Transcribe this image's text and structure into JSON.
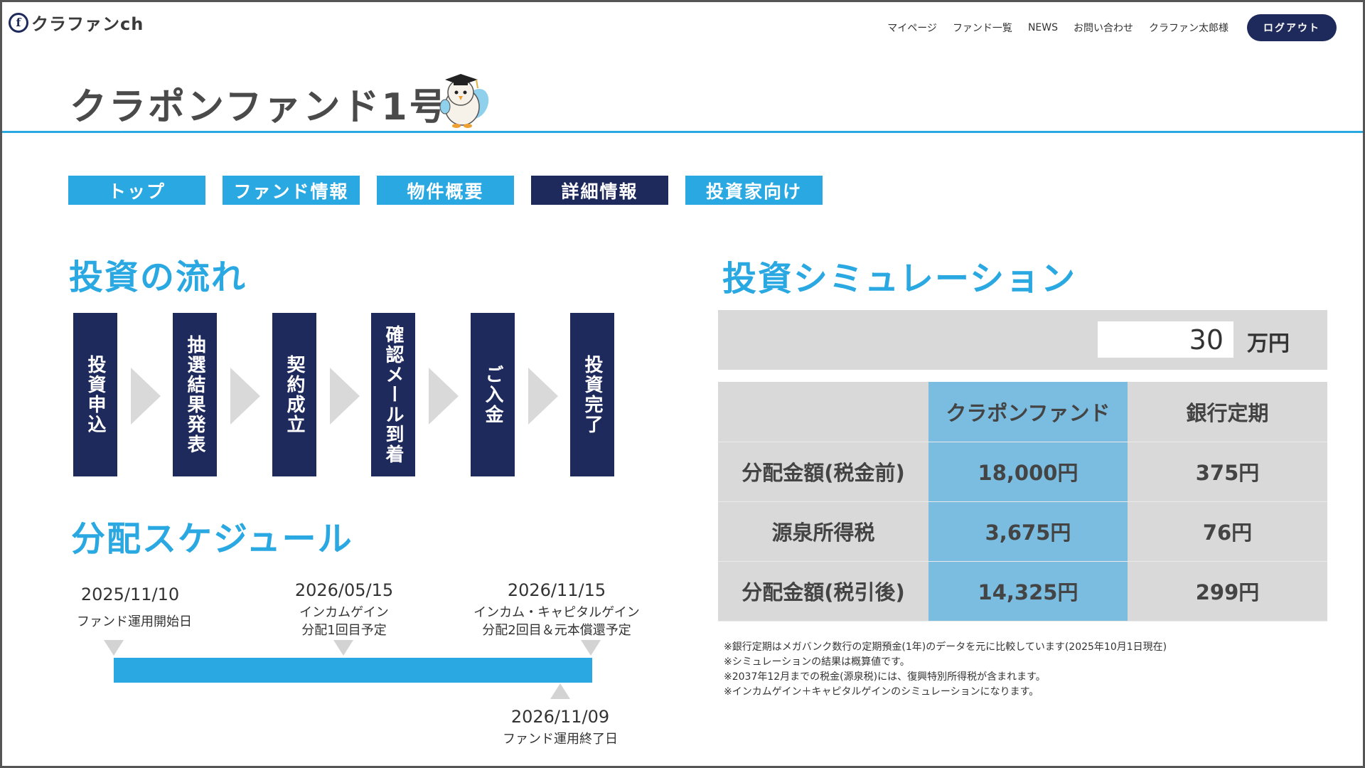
{
  "header": {
    "logo_mark": "f",
    "logo_text": "クラファンch",
    "nav": [
      "マイページ",
      "ファンド一覧",
      "NEWS",
      "お問い合わせ",
      "クラファン太郎様"
    ],
    "logout": "ログアウト"
  },
  "page_title": "クラポンファンド1号",
  "tabs": [
    {
      "label": "トップ",
      "active": false
    },
    {
      "label": "ファンド情報",
      "active": false
    },
    {
      "label": "物件概要",
      "active": false
    },
    {
      "label": "詳細情報",
      "active": true
    },
    {
      "label": "投資家向け",
      "active": false
    }
  ],
  "flow": {
    "heading": "投資の流れ",
    "steps": [
      "投資申込",
      "抽選結果発表",
      "契約成立",
      "確認メール到着",
      "ご入金",
      "投資完了"
    ]
  },
  "schedule": {
    "heading": "分配スケジュール",
    "events": [
      {
        "date": "2025/11/10",
        "label": "ファンド運用開始日"
      },
      {
        "date": "2026/05/15",
        "label": "インカムゲイン\n分配1回目予定"
      },
      {
        "date": "2026/11/15",
        "label": "インカム・キャピタルゲイン\n分配2回目＆元本償還予定"
      },
      {
        "date": "2026/11/09",
        "label": "ファンド運用終了日"
      }
    ]
  },
  "simulation": {
    "heading": "投資シミュレーション",
    "amount": "30",
    "unit": "万円",
    "columns": [
      "",
      "クラポンファンド",
      "銀行定期"
    ],
    "rows": [
      [
        "分配金額(税金前)",
        "18,000円",
        "375円"
      ],
      [
        "源泉所得税",
        "3,675円",
        "76円"
      ],
      [
        "分配金額(税引後)",
        "14,325円",
        "299円"
      ]
    ],
    "notes": [
      "※銀行定期はメガバンク数行の定期預金(1年)のデータを元に比較しています(2025年10月1日現在)",
      "※シミュレーションの結果は概算値です。",
      "※2037年12月までの税金(源泉税)には、復興特別所得税が含まれます。",
      "※インカムゲイン＋キャピタルゲインのシミュレーションになります。"
    ]
  },
  "colors": {
    "accent": "#2aa8e2",
    "navy": "#1f2a5c",
    "highlight": "#7bbde0",
    "gray": "#d9d9d9"
  }
}
